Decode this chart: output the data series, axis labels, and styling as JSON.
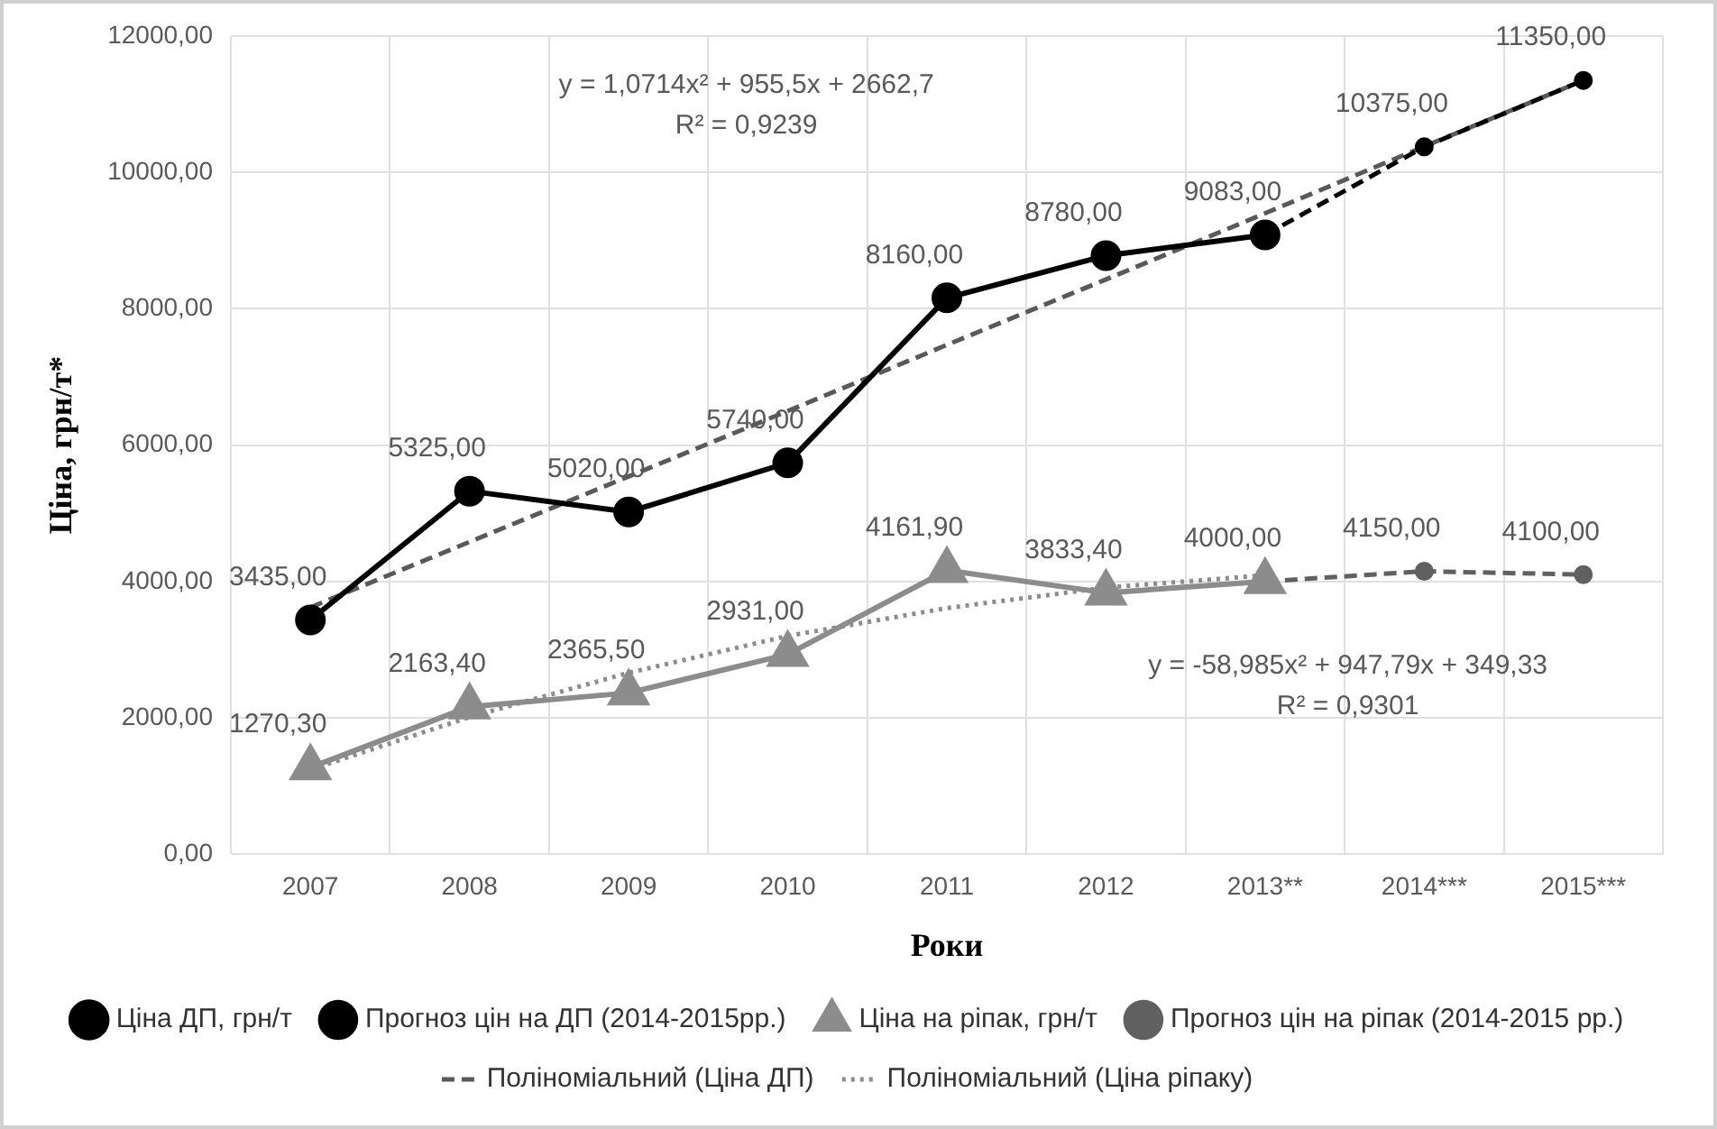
{
  "chart_data": {
    "type": "line",
    "xlabel": "Роки",
    "ylabel": "Ціна, грн/т*",
    "categories": [
      "2007",
      "2008",
      "2009",
      "2010",
      "2011",
      "2012",
      "2013**",
      "2014***",
      "2015***"
    ],
    "ylim": [
      0,
      12000
    ],
    "yticks": [
      {
        "value": 0,
        "label": "0,00"
      },
      {
        "value": 2000,
        "label": "2000,00"
      },
      {
        "value": 4000,
        "label": "4000,00"
      },
      {
        "value": 6000,
        "label": "6000,00"
      },
      {
        "value": 8000,
        "label": "8000,00"
      },
      {
        "value": 10000,
        "label": "10000,00"
      },
      {
        "value": 12000,
        "label": "12000,00"
      }
    ],
    "grid": true,
    "legend": "bottom",
    "series": [
      {
        "name": "Ціна ДП, грн/т",
        "color": "#000000",
        "marker": "circle",
        "line_style": "solid",
        "values": [
          3435,
          5325,
          5020,
          5740,
          8160,
          8780,
          9083,
          null,
          null
        ],
        "value_labels": [
          "3435,00",
          "5325,00",
          "5020,00",
          "5740,00",
          "8160,00",
          "8780,00",
          "9083,00",
          null,
          null
        ]
      },
      {
        "name": "Прогноз цін на ДП (2014-2015рр.)",
        "color": "#000000",
        "marker": "circle",
        "line_style": "dashed",
        "values": [
          null,
          null,
          null,
          null,
          null,
          null,
          9083,
          10375,
          11350
        ],
        "value_labels": [
          null,
          null,
          null,
          null,
          null,
          null,
          null,
          "10375,00",
          "11350,00"
        ]
      },
      {
        "name": "Ціна на ріпак, грн/т",
        "color": "#8c8c8c",
        "marker": "triangle",
        "line_style": "solid",
        "values": [
          1270.3,
          2163.4,
          2365.5,
          2931,
          4161.9,
          3833.4,
          4000,
          null,
          null
        ],
        "value_labels": [
          "1270,30",
          "2163,40",
          "2365,50",
          "2931,00",
          "4161,90",
          "3833,40",
          "4000,00",
          null,
          null
        ]
      },
      {
        "name": "Прогноз цін на ріпак (2014-2015 рр.)",
        "color": "#606060",
        "marker": "circle",
        "line_style": "dashed",
        "values": [
          null,
          null,
          null,
          null,
          null,
          null,
          4000,
          4150,
          4100
        ],
        "value_labels": [
          null,
          null,
          null,
          null,
          null,
          null,
          null,
          "4150,00",
          "4100,00"
        ]
      },
      {
        "name": "Поліноміальний (Ціна ДП)",
        "color": "#595959",
        "marker": "none",
        "line_style": "dashed",
        "values": [
          3620,
          4580,
          5540,
          6500,
          7470,
          8430,
          9400,
          10380,
          11350
        ]
      },
      {
        "name": "Поліноміальний (Ціна ріпаку)",
        "color": "#8c8c8c",
        "marker": "none",
        "line_style": "dotted",
        "values": [
          1240,
          2010,
          2660,
          3200,
          3610,
          3910,
          4090,
          null,
          null
        ]
      }
    ],
    "annotations": [
      "y = 1,0714x² + 955,5x + 2662,7",
      "R² = 0,9239",
      "y = -58,985x² + 947,79x + 349,33",
      "R² = 0,9301"
    ]
  }
}
